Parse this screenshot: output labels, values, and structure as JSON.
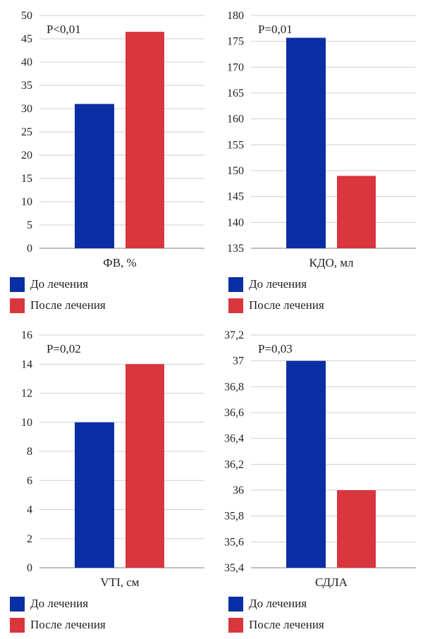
{
  "colors": {
    "before": "#0a2fa5",
    "after": "#d9363e",
    "grid": "#cfcfcf",
    "axis": "#9a9a9a"
  },
  "legend": {
    "before": "До лечения",
    "after": "После лечения"
  },
  "chart_data": [
    {
      "type": "bar",
      "xlabel": "ФВ, %",
      "annotation": "P<0,01",
      "categories": [
        "ФВ, %"
      ],
      "series": [
        {
          "name": "До лечения",
          "values": [
            31
          ]
        },
        {
          "name": "После лечения",
          "values": [
            46.5
          ]
        }
      ],
      "ylim": [
        0,
        50
      ],
      "yticks": [
        0,
        5,
        10,
        15,
        20,
        25,
        30,
        35,
        40,
        45,
        50
      ],
      "ytick_labels": [
        "0",
        "5",
        "10",
        "15",
        "20",
        "25",
        "30",
        "35",
        "40",
        "45",
        "50"
      ],
      "grid": true,
      "legend_position": "bottom"
    },
    {
      "type": "bar",
      "xlabel": "КДО, мл",
      "annotation": "P=0,01",
      "categories": [
        "КДО, мл"
      ],
      "series": [
        {
          "name": "До лечения",
          "values": [
            175.7
          ]
        },
        {
          "name": "После лечения",
          "values": [
            149
          ]
        }
      ],
      "ylim": [
        135,
        180
      ],
      "yticks": [
        135,
        140,
        145,
        150,
        155,
        160,
        165,
        170,
        175,
        180
      ],
      "ytick_labels": [
        "135",
        "140",
        "145",
        "150",
        "155",
        "160",
        "165",
        "170",
        "175",
        "180"
      ],
      "grid": true,
      "legend_position": "bottom"
    },
    {
      "type": "bar",
      "xlabel": "VTI, см",
      "annotation": "P=0,02",
      "categories": [
        "VTI, см"
      ],
      "series": [
        {
          "name": "До лечения",
          "values": [
            10
          ]
        },
        {
          "name": "После лечения",
          "values": [
            14
          ]
        }
      ],
      "ylim": [
        0,
        16
      ],
      "yticks": [
        0,
        2,
        4,
        6,
        8,
        10,
        12,
        14,
        16
      ],
      "ytick_labels": [
        "0",
        "2",
        "4",
        "6",
        "8",
        "10",
        "12",
        "14",
        "16"
      ],
      "grid": true,
      "legend_position": "bottom"
    },
    {
      "type": "bar",
      "xlabel": "СДЛА",
      "annotation": "P=0,03",
      "categories": [
        "СДЛА"
      ],
      "series": [
        {
          "name": "До лечения",
          "values": [
            37
          ]
        },
        {
          "name": "После лечения",
          "values": [
            36
          ]
        }
      ],
      "ylim": [
        35.4,
        37.2
      ],
      "yticks": [
        35.4,
        35.6,
        35.8,
        36,
        36.2,
        36.4,
        36.6,
        36.8,
        37,
        37.2
      ],
      "ytick_labels": [
        "35,4",
        "35,6",
        "35,8",
        "36",
        "36,2",
        "36,4",
        "36,6",
        "36,8",
        "37",
        "37,2"
      ],
      "grid": true,
      "legend_position": "bottom"
    }
  ]
}
